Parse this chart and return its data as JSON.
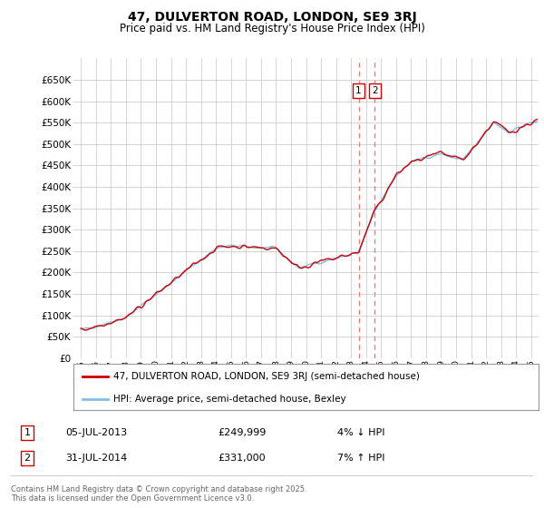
{
  "title": "47, DULVERTON ROAD, LONDON, SE9 3RJ",
  "subtitle": "Price paid vs. HM Land Registry's House Price Index (HPI)",
  "legend_line1": "47, DULVERTON ROAD, LONDON, SE9 3RJ (semi-detached house)",
  "legend_line2": "HPI: Average price, semi-detached house, Bexley",
  "footnote": "Contains HM Land Registry data © Crown copyright and database right 2025.\nThis data is licensed under the Open Government Licence v3.0.",
  "sale1_date": "05-JUL-2013",
  "sale1_price": 249999,
  "sale1_hpi": "4% ↓ HPI",
  "sale2_date": "31-JUL-2014",
  "sale2_price": 331000,
  "sale2_hpi": "7% ↑ HPI",
  "sale1_x": 2013.51,
  "sale2_x": 2014.58,
  "hpi_color": "#7dbfe8",
  "price_color": "#cc0000",
  "vline_color": "#e08080",
  "background_color": "#ffffff",
  "grid_color": "#cccccc",
  "ylim_min": 0,
  "ylim_max": 700000,
  "yticks": [
    0,
    50000,
    100000,
    150000,
    200000,
    250000,
    300000,
    350000,
    400000,
    450000,
    500000,
    550000,
    600000,
    650000
  ],
  "xlim_min": 1994.5,
  "xlim_max": 2025.5,
  "xticks": [
    1995,
    1996,
    1997,
    1998,
    1999,
    2000,
    2001,
    2002,
    2003,
    2004,
    2005,
    2006,
    2007,
    2008,
    2009,
    2010,
    2011,
    2012,
    2013,
    2014,
    2015,
    2016,
    2017,
    2018,
    2019,
    2020,
    2021,
    2022,
    2023,
    2024,
    2025
  ]
}
